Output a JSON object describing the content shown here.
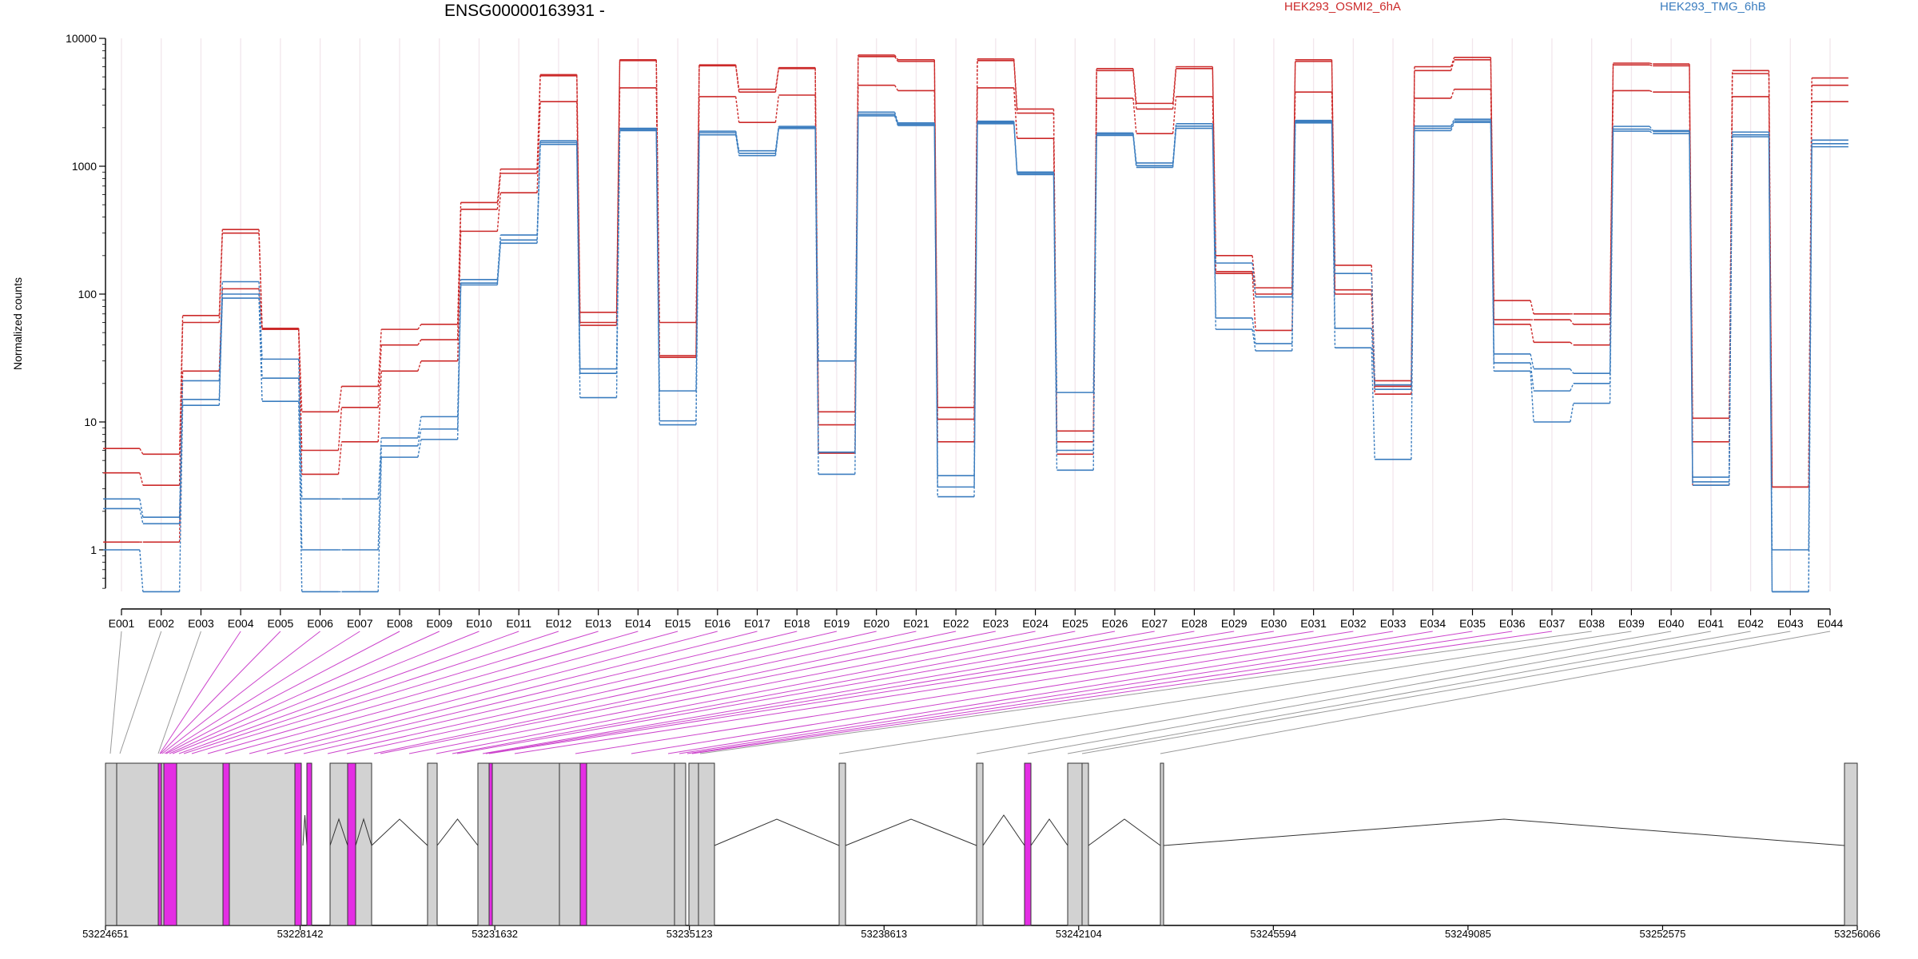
{
  "chart_data": {
    "type": "line",
    "title": "ENSG00000163931 -",
    "ylabel": "Normalized counts",
    "yscale": "log",
    "ylim": [
      0.4,
      10000
    ],
    "yticks": [
      1,
      10,
      100,
      1000,
      10000
    ],
    "ytick_labels": [
      "1",
      "10",
      "100",
      "1000",
      "10000"
    ],
    "grid": "vertical",
    "legend_placement": "top",
    "categories": [
      "E001",
      "E002",
      "E003",
      "E004",
      "E005",
      "E006",
      "E007",
      "E008",
      "E009",
      "E010",
      "E011",
      "E012",
      "E013",
      "E014",
      "E015",
      "E016",
      "E017",
      "E018",
      "E019",
      "E020",
      "E021",
      "E022",
      "E023",
      "E024",
      "E025",
      "E026",
      "E027",
      "E028",
      "E029",
      "E030",
      "E031",
      "E032",
      "E033",
      "E034",
      "E035",
      "E036",
      "E037",
      "E038",
      "E039",
      "E040",
      "E041",
      "E042",
      "E043",
      "E044"
    ],
    "series": [
      {
        "name": "HEK293_OSMI2_6hA",
        "color": "#cc2a2a",
        "values": [
          6.2,
          5.6,
          68,
          320,
          54,
          12,
          19,
          53,
          58,
          520,
          950,
          5200,
          72,
          6800,
          60,
          6200,
          4000,
          5900,
          12,
          7400,
          6800,
          13,
          6900,
          2800,
          8.5,
          5800,
          3100,
          6000,
          200,
          112,
          6800,
          168,
          21,
          6000,
          7100,
          89,
          70,
          70,
          6400,
          6300,
          10.7,
          5600,
          3.1,
          4900
        ]
      },
      {
        "name": "HEK293_OSMI2_6hA",
        "color": "#cc2a2a",
        "values": [
          4.0,
          3.2,
          60,
          300,
          53,
          6,
          13,
          40,
          44,
          460,
          880,
          5100,
          60,
          6700,
          33,
          6100,
          3800,
          5800,
          9.5,
          7200,
          6600,
          10.5,
          6700,
          2600,
          7,
          5600,
          2800,
          5800,
          150,
          100,
          6600,
          108,
          19,
          5600,
          6800,
          63,
          63,
          58,
          6200,
          6100,
          7,
          5300,
          3.1,
          4300
        ]
      },
      {
        "name": "HEK293_OSMI2_6hA",
        "color": "#cc2a2a",
        "values": [
          1.15,
          1.15,
          25,
          110,
          53,
          3.9,
          7,
          25,
          30,
          310,
          620,
          3200,
          57,
          4100,
          32,
          3500,
          2200,
          3600,
          5.7,
          4300,
          3900,
          7,
          4100,
          1650,
          5.6,
          3400,
          1800,
          3500,
          145,
          52,
          3800,
          100,
          16.5,
          3400,
          4000,
          58,
          42,
          40,
          3900,
          3800,
          3.2,
          3500,
          3.1,
          3200
        ]
      },
      {
        "name": "HEK293_TMG_6hB",
        "color": "#3b7dbf",
        "values": [
          2.5,
          1.8,
          21,
          125,
          31,
          2.5,
          2.5,
          7.5,
          11,
          130,
          290,
          1580,
          26,
          1980,
          17.5,
          1880,
          1320,
          2050,
          30,
          2650,
          2180,
          3.8,
          2250,
          900,
          17,
          1820,
          1060,
          2150,
          175,
          95,
          2280,
          145,
          19.5,
          2060,
          2330,
          34,
          26,
          24,
          2050,
          1900,
          3.7,
          1850,
          1.0,
          1600
        ]
      },
      {
        "name": "HEK293_TMG_6hB",
        "color": "#3b7dbf",
        "values": [
          2.1,
          1.6,
          15,
          100,
          22,
          1.0,
          1.0,
          6.5,
          8.8,
          122,
          265,
          1530,
          24,
          1940,
          10.2,
          1830,
          1260,
          2010,
          5.8,
          2550,
          2130,
          3.1,
          2200,
          880,
          6,
          1780,
          1010,
          2060,
          65,
          41,
          2230,
          54,
          18,
          1980,
          2260,
          29,
          17.5,
          20,
          1950,
          1870,
          3.4,
          1760,
          0.47,
          1500
        ]
      },
      {
        "name": "HEK293_TMG_6hB",
        "color": "#3b7dbf",
        "values": [
          1.0,
          0.47,
          13.5,
          93,
          14.5,
          0.47,
          0.47,
          5.3,
          7.3,
          118,
          250,
          1480,
          15.5,
          1900,
          9.5,
          1760,
          1210,
          1970,
          3.9,
          2480,
          2080,
          2.6,
          2150,
          860,
          4.2,
          1740,
          980,
          1980,
          53,
          36,
          2180,
          38,
          5.1,
          1900,
          2200,
          25,
          10,
          14,
          1880,
          1800,
          3.2,
          1700,
          0.47,
          1420
        ]
      }
    ],
    "gene_model": {
      "genomic_ticks": [
        "53224651",
        "53228142",
        "53231632",
        "53235123",
        "53238613",
        "53242104",
        "53245594",
        "53249085",
        "53252575",
        "53256066"
      ],
      "exon_colors": {
        "normal": "#d2d2d2",
        "highlighted": "#e42ee4"
      }
    }
  },
  "colors": {
    "red": "#cc2a2a",
    "blue": "#3b7dbf",
    "magenta": "#cc44cc",
    "grey": "#9a9a9a"
  }
}
